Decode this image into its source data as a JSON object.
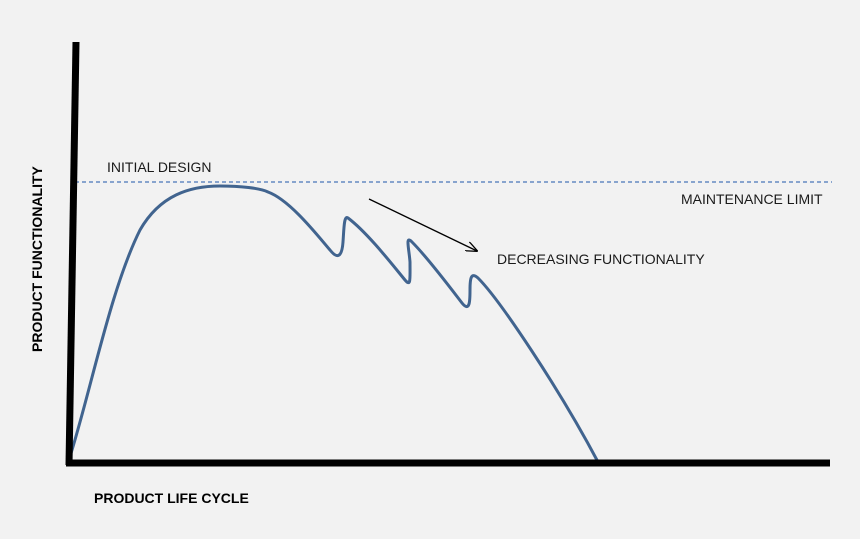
{
  "diagram": {
    "x_axis_label": "PRODUCT LIFE CYCLE",
    "y_axis_label": "PRODUCT FUNCTIONALITY",
    "initial_design_label": "INITIAL DESIGN",
    "maintenance_limit_label": "MAINTENANCE LIMIT",
    "decreasing_label": "DECREASING FUNCTIONALITY"
  },
  "colors": {
    "background": "#f2f2f2",
    "axis": "#000000",
    "curve": "#41648f",
    "limit_line": "#4a76b8",
    "arrow": "#000000",
    "text": "#1a1a1a"
  }
}
